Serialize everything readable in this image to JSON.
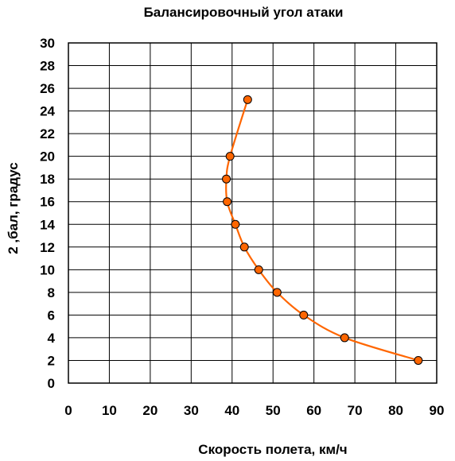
{
  "chart_data": {
    "type": "scatter",
    "title": "Балансировочный угол атаки",
    "xlabel": "Скорость полета, км/ч",
    "ylabel": "2 ,бал, градус",
    "xlim": [
      0,
      90
    ],
    "ylim": [
      0,
      30
    ],
    "xticks": [
      0,
      10,
      20,
      30,
      40,
      50,
      60,
      70,
      80,
      90
    ],
    "yticks": [
      0,
      2,
      4,
      6,
      8,
      10,
      12,
      14,
      16,
      18,
      20,
      22,
      24,
      26,
      28,
      30
    ],
    "grid": true,
    "legend": "none",
    "series": [
      {
        "points": [
          {
            "x": 85.5,
            "y": 2
          },
          {
            "x": 67.5,
            "y": 4
          },
          {
            "x": 57.5,
            "y": 6
          },
          {
            "x": 51.0,
            "y": 8
          },
          {
            "x": 46.5,
            "y": 10
          },
          {
            "x": 43.0,
            "y": 12
          },
          {
            "x": 40.8,
            "y": 14
          },
          {
            "x": 38.8,
            "y": 16
          },
          {
            "x": 38.6,
            "y": 18
          },
          {
            "x": 39.5,
            "y": 20
          },
          {
            "x": 43.8,
            "y": 25
          }
        ],
        "color": "#ff6600",
        "marker_color": "#ff6600",
        "marker_edge": "#000000",
        "line": "smooth"
      }
    ]
  }
}
